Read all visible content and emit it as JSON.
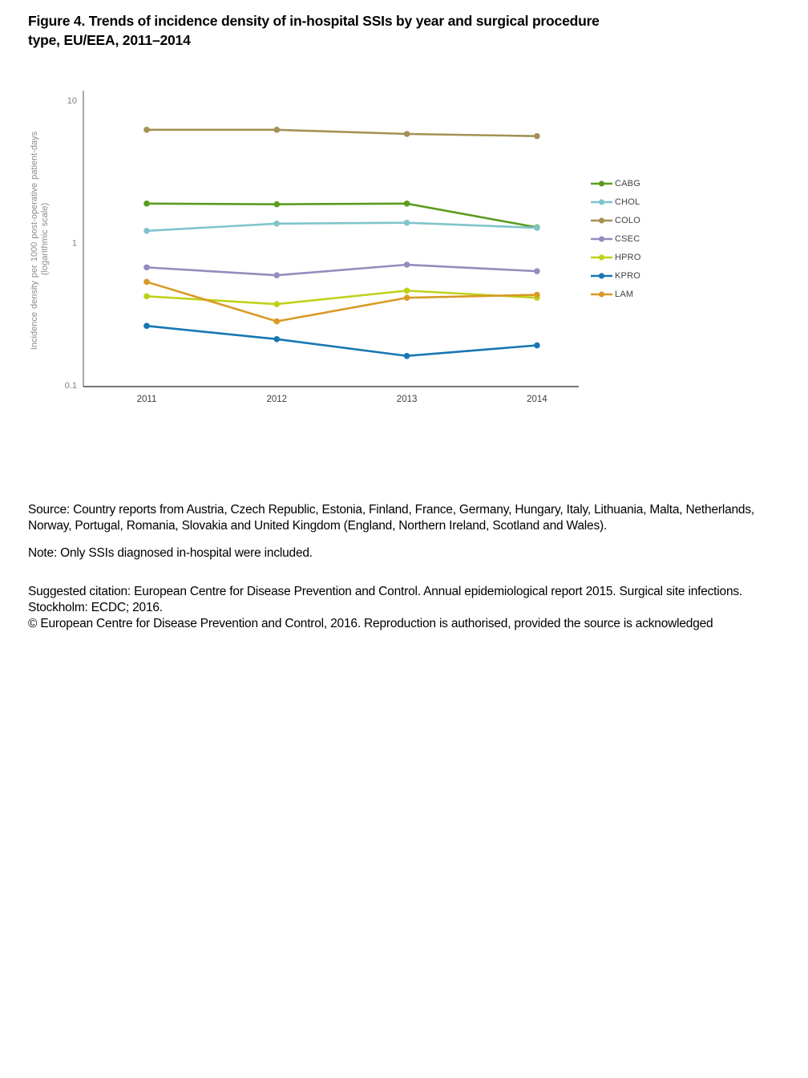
{
  "title": {
    "line1": "Figure 4. Trends of incidence density of in-hospital SSIs by year and surgical procedure",
    "line2": "type, EU/EEA, 2011–2014"
  },
  "chart_data": {
    "type": "line",
    "x": [
      "2011",
      "2012",
      "2013",
      "2014"
    ],
    "series": [
      {
        "name": "CABG",
        "color": "#5c9c1e",
        "values": [
          1.88,
          1.86,
          1.88,
          1.28
        ]
      },
      {
        "name": "CHOL",
        "color": "#7fc4cc",
        "values": [
          1.21,
          1.36,
          1.38,
          1.27
        ]
      },
      {
        "name": "COLO",
        "color": "#a39155",
        "values": [
          6.2,
          6.2,
          5.8,
          5.6
        ]
      },
      {
        "name": "CSEC",
        "color": "#968bbd",
        "values": [
          0.67,
          0.59,
          0.7,
          0.63
        ]
      },
      {
        "name": "HPRO",
        "color": "#bfd117",
        "values": [
          0.42,
          0.37,
          0.46,
          0.41
        ]
      },
      {
        "name": "KPRO",
        "color": "#1677b3",
        "values": [
          0.26,
          0.21,
          0.16,
          0.19
        ]
      },
      {
        "name": "LAM",
        "color": "#d89a27",
        "values": [
          0.53,
          0.28,
          0.41,
          0.43
        ]
      }
    ],
    "ylabel_line1": "Incidence density per 1000 post-operative patient-days",
    "ylabel_line2": "(logarithmic scale)",
    "yscale": "log",
    "ylim": [
      0.1,
      10
    ],
    "yticks": [
      {
        "label": "10",
        "value": 10
      },
      {
        "label": "1",
        "value": 1
      },
      {
        "label": "0.1",
        "value": 0.1
      }
    ],
    "grid": false,
    "legend_position": "right",
    "colors": {
      "y_axis_line": "#8c8c8c",
      "x_axis_line": "#4a4a4a",
      "y_tick_label": "#7f7f7f",
      "x_tick_label": "#404040",
      "y_axis_title": "#8c8c8c"
    }
  },
  "footer": {
    "source": "Source: Country reports from Austria, Czech Republic, Estonia, Finland, France, Germany, Hungary, Italy, Lithuania, Malta, Netherlands, Norway, Portugal, Romania, Slovakia and United Kingdom (England, Northern Ireland, Scotland and Wales).",
    "note": "Note: Only SSIs diagnosed in-hospital were included.",
    "citation": "Suggested citation: European Centre for Disease Prevention and Control. Annual epidemiological report 2015. Surgical site infections. Stockholm: ECDC; 2016.",
    "copyright": "© European Centre for Disease Prevention and Control, 2016. Reproduction is authorised, provided the source is acknowledged"
  }
}
